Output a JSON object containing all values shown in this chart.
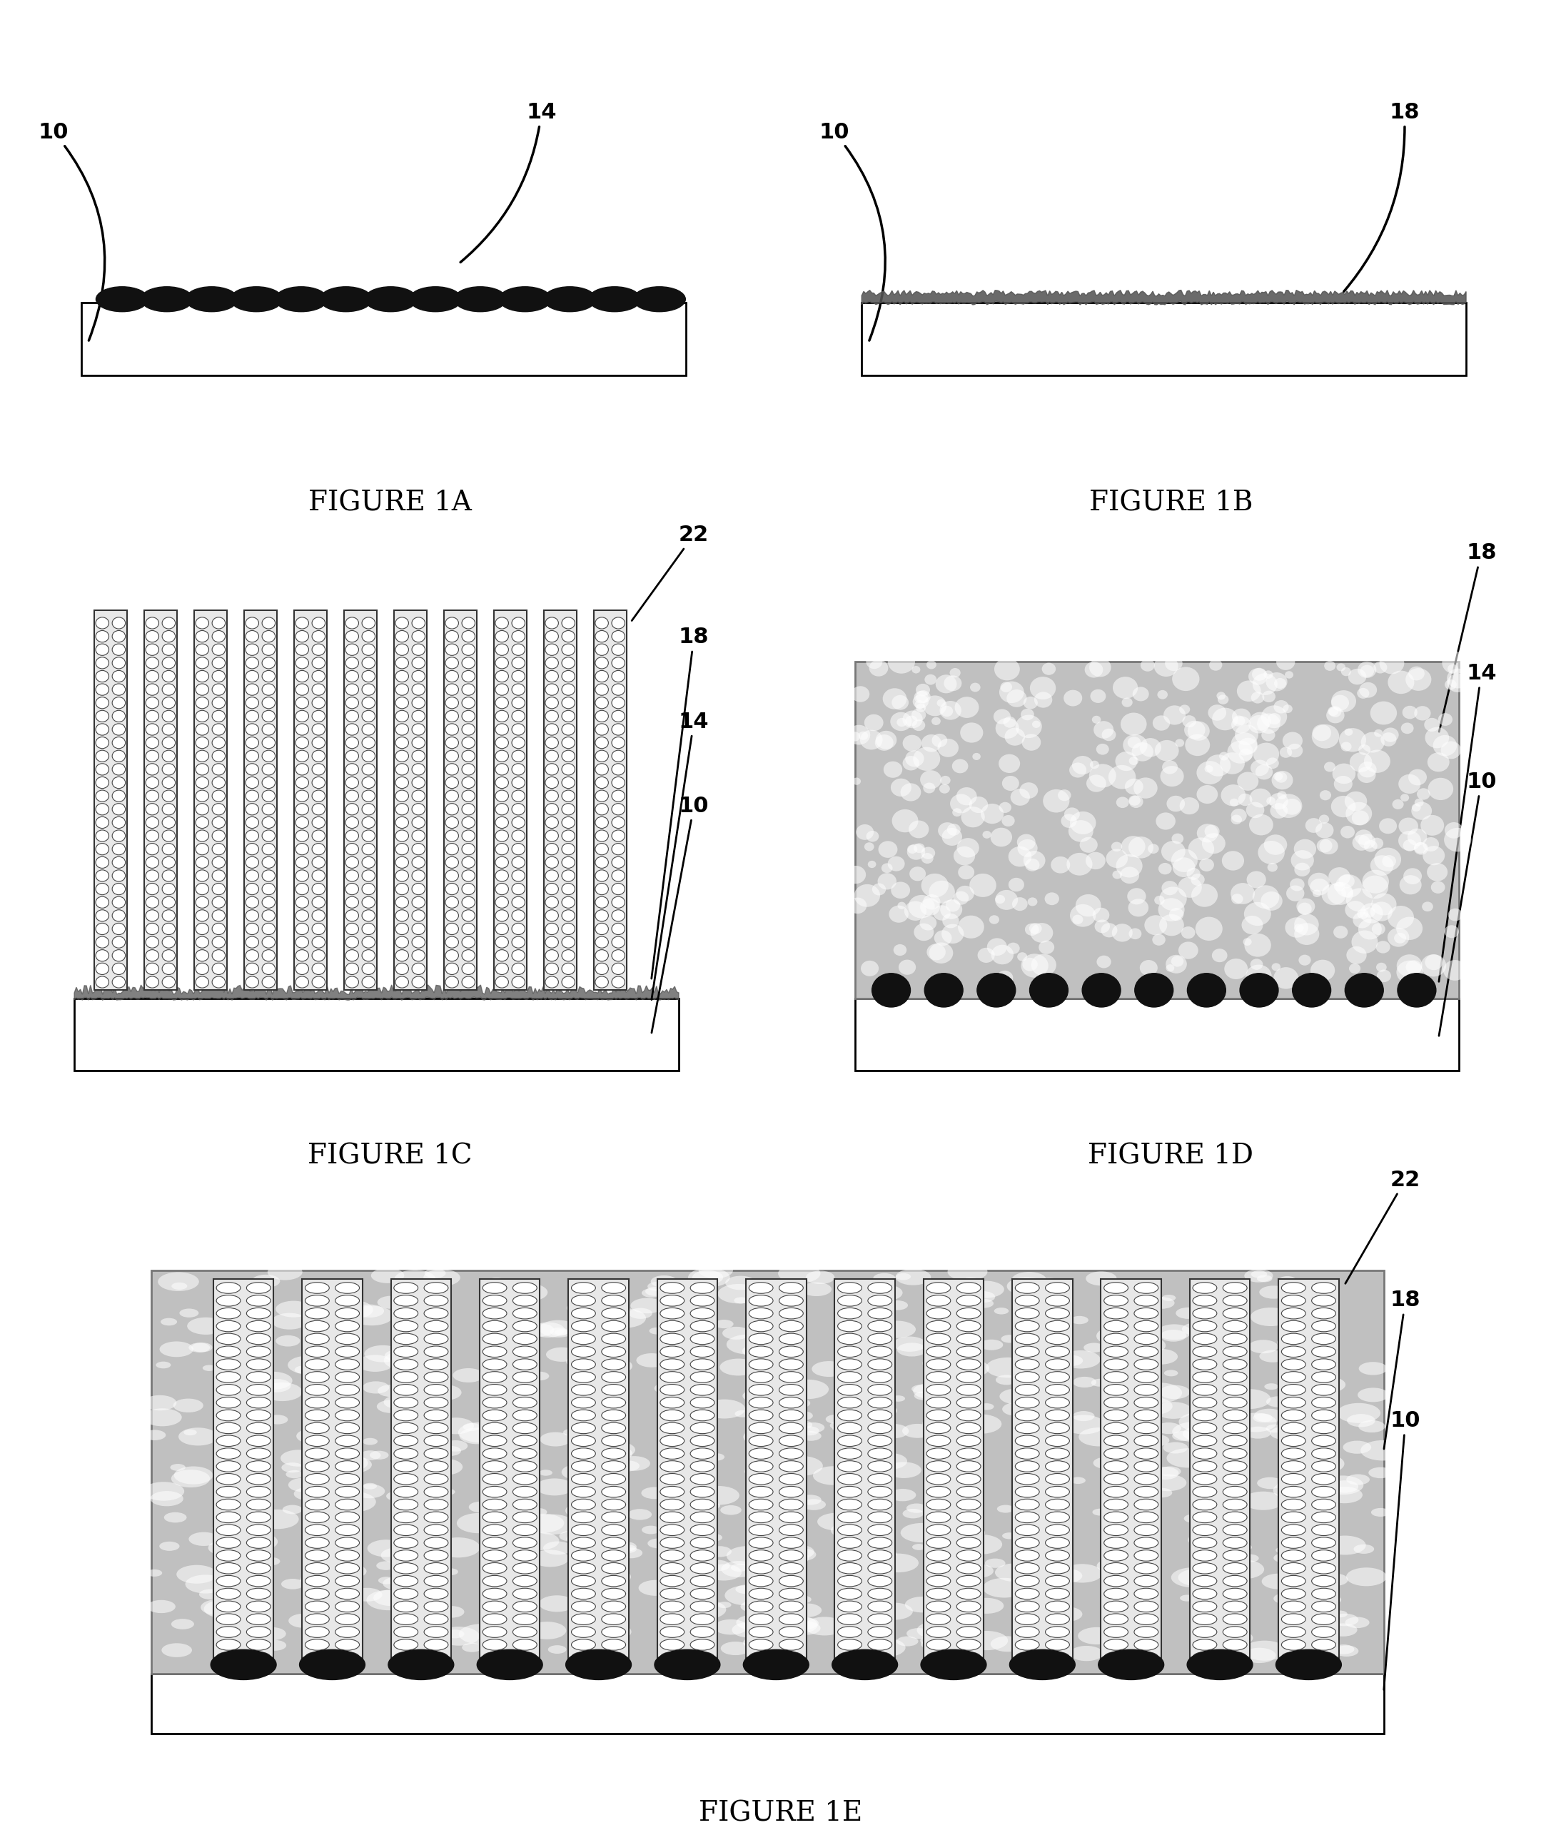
{
  "background_color": "#ffffff",
  "figures": [
    {
      "label": "FIGURE 1A",
      "type": "1A"
    },
    {
      "label": "FIGURE 1B",
      "type": "1B"
    },
    {
      "label": "FIGURE 1C",
      "type": "1C"
    },
    {
      "label": "FIGURE 1D",
      "type": "1D"
    },
    {
      "label": "FIGURE 1E",
      "type": "1E"
    }
  ],
  "label_fontsize": 28,
  "ref_fontsize": 22,
  "substrate_color": "#ffffff",
  "substrate_edge": "#000000",
  "catalyst_color": "#111111",
  "cnt_fill": "#ffffff",
  "cnt_edge": "#111111",
  "matrix_color": "#c8c8c8",
  "matrix_edge": "#999999"
}
